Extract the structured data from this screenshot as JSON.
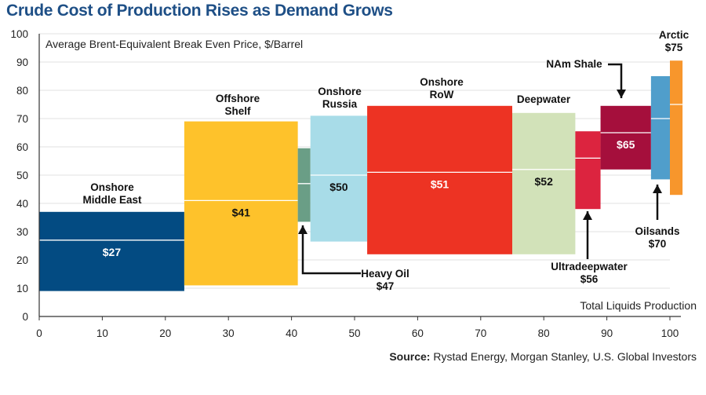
{
  "chart_data": {
    "type": "bar",
    "title": "Crude Cost of Production Rises as Demand Grows",
    "ylabel": "Average Brent-Equivalent Break Even Price, $/Barrel",
    "xlabel": "Total Liquids Production",
    "source_prefix": "Source:",
    "source_text": "Rystad Energy, Morgan Stanley, U.S. Global Investors",
    "xlim": [
      0,
      105
    ],
    "ylim": [
      0,
      100
    ],
    "x_ticks": [
      0,
      10,
      20,
      30,
      40,
      50,
      60,
      70,
      80,
      90,
      100
    ],
    "y_ticks": [
      0,
      10,
      20,
      30,
      40,
      50,
      60,
      70,
      80,
      90,
      100
    ],
    "grid": true,
    "series": [
      {
        "category": "Onshore Middle East",
        "label_lines": [
          "Onshore",
          "Middle East"
        ],
        "value_label": "$27",
        "x_start": 0,
        "x_end": 23,
        "low": 9,
        "high": 37,
        "breakeven": 27,
        "color": "#034b82",
        "value_color": "#ffffff"
      },
      {
        "category": "Offshore Shelf",
        "label_lines": [
          "Offshore",
          "Shelf"
        ],
        "value_label": "$41",
        "x_start": 23,
        "x_end": 41,
        "low": 11,
        "high": 69,
        "breakeven": 41,
        "color": "#fec22b",
        "value_color": "#111111"
      },
      {
        "category": "Heavy Oil",
        "label_lines": [
          "Heavy Oil",
          "$47"
        ],
        "value_label": "",
        "x_start": 41,
        "x_end": 43,
        "low": 33.5,
        "high": 59.5,
        "breakeven": 47,
        "color": "#6a9e86",
        "value_color": "#111111"
      },
      {
        "category": "Onshore Russia",
        "label_lines": [
          "Onshore",
          "Russia"
        ],
        "value_label": "$50",
        "x_start": 43,
        "x_end": 52,
        "low": 26.5,
        "high": 71,
        "breakeven": 50,
        "color": "#a8dce8",
        "value_color": "#111111"
      },
      {
        "category": "Onshore RoW",
        "label_lines": [
          "Onshore",
          "RoW"
        ],
        "value_label": "$51",
        "x_start": 52,
        "x_end": 75,
        "low": 22,
        "high": 74.5,
        "breakeven": 51,
        "color": "#ed3323",
        "value_color": "#ffffff"
      },
      {
        "category": "Deepwater",
        "label_lines": [
          "Deepwater"
        ],
        "value_label": "$52",
        "x_start": 75,
        "x_end": 85,
        "low": 22,
        "high": 72,
        "breakeven": 52,
        "color": "#d2e2b9",
        "value_color": "#111111"
      },
      {
        "category": "Ultradeepwater",
        "label_lines": [
          "Ultradeepwater",
          "$56"
        ],
        "value_label": "",
        "x_start": 85,
        "x_end": 89,
        "low": 38,
        "high": 65.5,
        "breakeven": 56,
        "color": "#dc243f",
        "value_color": "#ffffff"
      },
      {
        "category": "NAm Shale",
        "label_lines": [
          "NAm Shale"
        ],
        "value_label": "$65",
        "x_start": 89,
        "x_end": 97,
        "low": 52,
        "high": 74.5,
        "breakeven": 65,
        "color": "#a50f3c",
        "value_color": "#ffffff"
      },
      {
        "category": "Oilsands",
        "label_lines": [
          "Oilsands",
          "$70"
        ],
        "value_label": "",
        "x_start": 97,
        "x_end": 100,
        "low": 48.5,
        "high": 85,
        "breakeven": 70,
        "color": "#509ecb",
        "value_color": "#ffffff"
      },
      {
        "category": "Arctic",
        "label_lines": [
          "Arctic",
          "$75"
        ],
        "value_label": "",
        "x_start": 100,
        "x_end": 102,
        "low": 43,
        "high": 90.5,
        "breakeven": 75,
        "color": "#f7962c",
        "value_color": "#ffffff"
      }
    ]
  }
}
